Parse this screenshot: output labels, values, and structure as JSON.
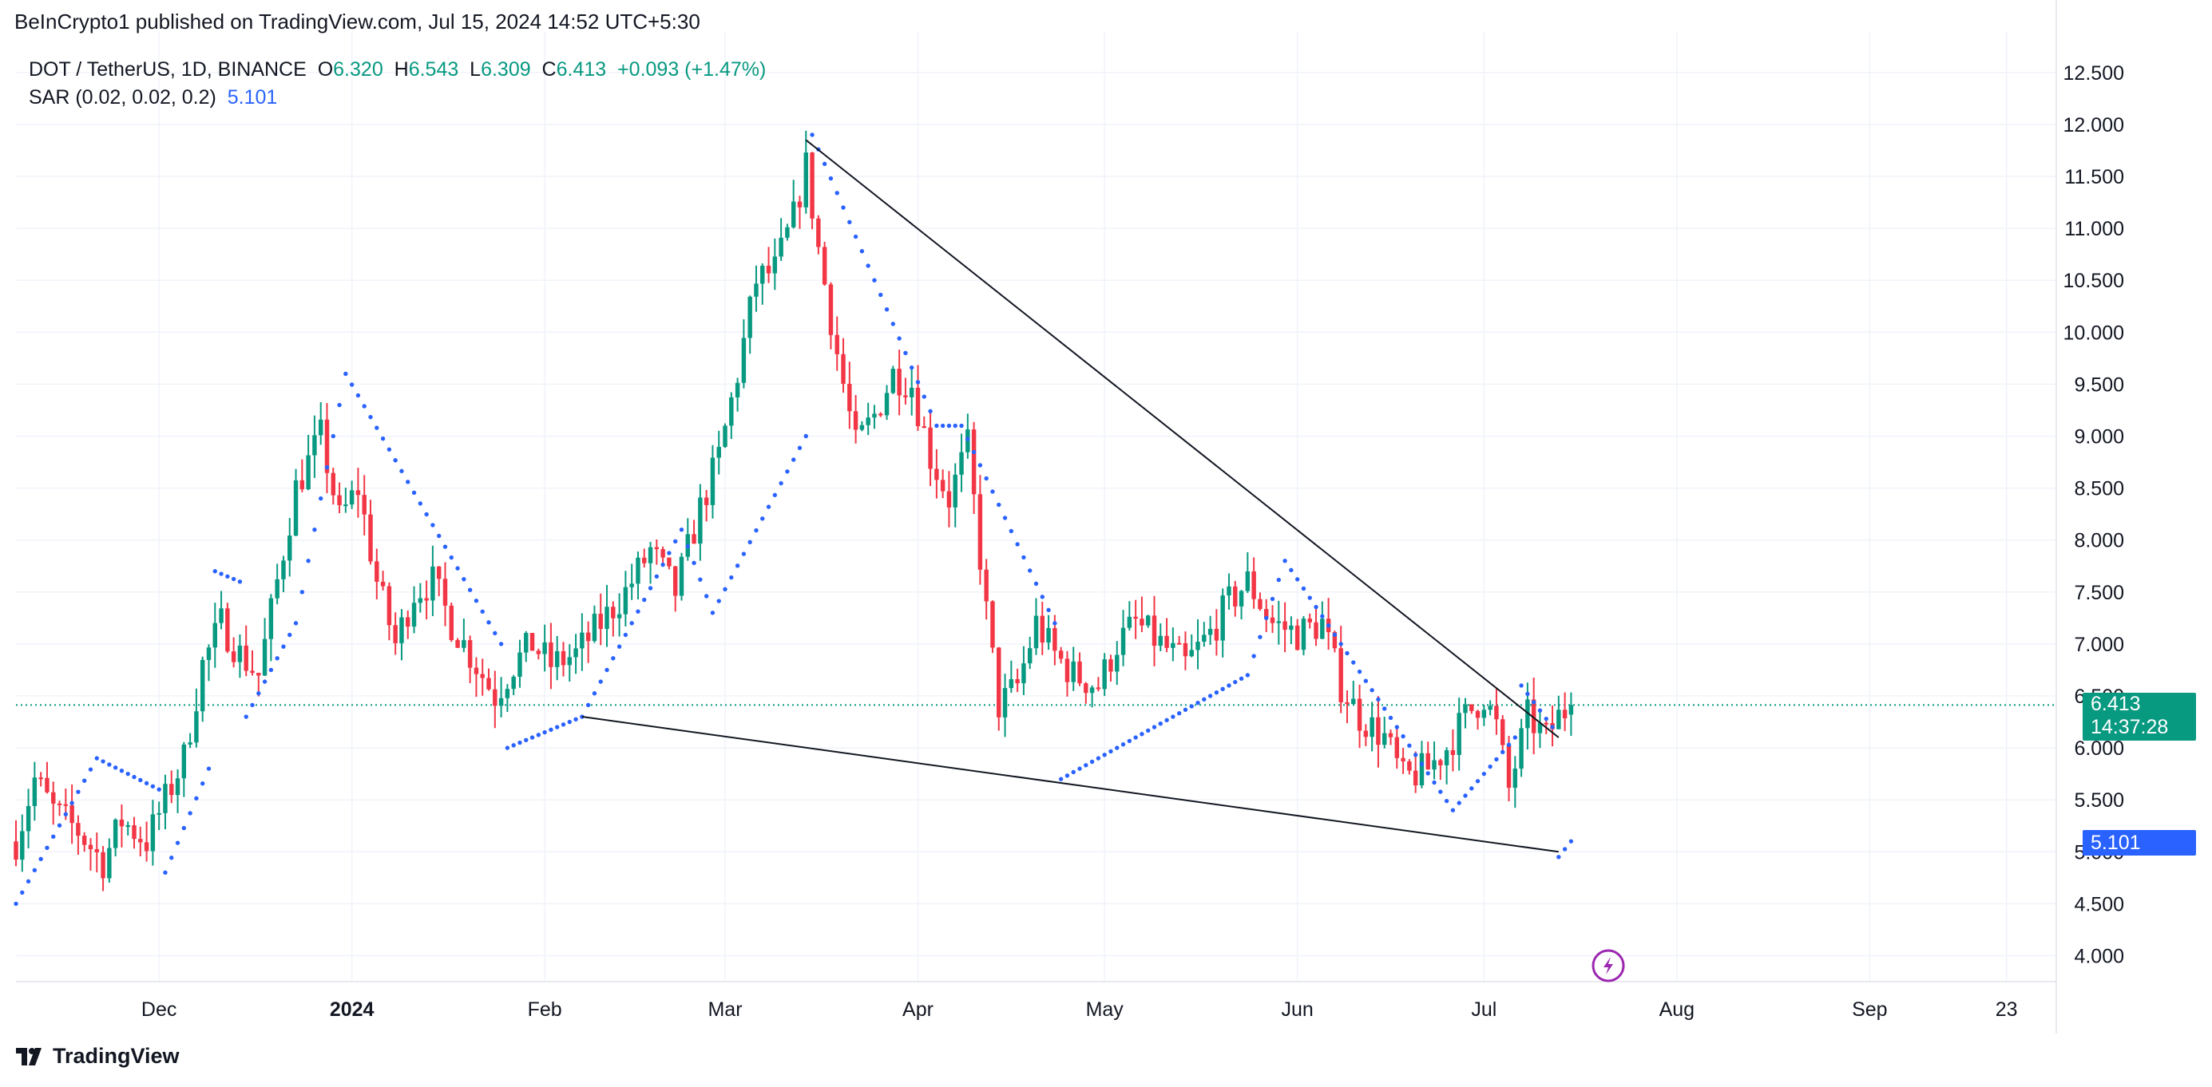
{
  "header": {
    "publisher": "BeInCrypto1 published on TradingView.com, Jul 15, 2024 14:52 UTC+5:30"
  },
  "legend": {
    "symbol": "DOT / TetherUS, 1D, BINANCE",
    "o_label": "O",
    "o": "6.320",
    "h_label": "H",
    "h": "6.543",
    "l_label": "L",
    "l": "6.309",
    "c_label": "C",
    "c": "6.413",
    "change": "+0.093 (+1.47%)",
    "sar_label": "SAR (0.02, 0.02, 0.2)",
    "sar_value": "5.101"
  },
  "price_tag": {
    "price": "6.413",
    "countdown": "14:37:28"
  },
  "sar_tag": {
    "value": "5.101"
  },
  "footer": {
    "brand": "TradingView"
  },
  "colors": {
    "up": "#089981",
    "down": "#f23645",
    "sar": "#2962ff",
    "grid": "#f0f3fa",
    "price_line": "#089981",
    "lightning": "#9c27b0"
  },
  "chart_data": {
    "type": "candlestick",
    "symbol": "DOT / TetherUS",
    "interval": "1D",
    "exchange": "BINANCE",
    "y_axis": {
      "min": 3.7,
      "max": 12.8,
      "ticks": [
        "4.000",
        "4.500",
        "5.000",
        "5.500",
        "6.000",
        "6.500",
        "7.000",
        "7.500",
        "8.000",
        "8.500",
        "9.000",
        "9.500",
        "10.000",
        "10.500",
        "11.000",
        "11.500",
        "12.000",
        "12.500"
      ]
    },
    "x_axis": {
      "start": "2023-11-08",
      "end": "2024-10-01",
      "labels": [
        {
          "text": "Dec",
          "date": "2023-12-01",
          "bold": false
        },
        {
          "text": "2024",
          "date": "2024-01-01",
          "bold": true
        },
        {
          "text": "Feb",
          "date": "2024-02-01",
          "bold": false
        },
        {
          "text": "Mar",
          "date": "2024-03-01",
          "bold": false
        },
        {
          "text": "Apr",
          "date": "2024-04-01",
          "bold": false
        },
        {
          "text": "May",
          "date": "2024-05-01",
          "bold": false
        },
        {
          "text": "Jun",
          "date": "2024-06-01",
          "bold": false
        },
        {
          "text": "Jul",
          "date": "2024-07-01",
          "bold": false
        },
        {
          "text": "Aug",
          "date": "2024-08-01",
          "bold": false
        },
        {
          "text": "Sep",
          "date": "2024-09-01",
          "bold": false
        },
        {
          "text": "23",
          "date": "2024-09-23",
          "bold": false
        }
      ]
    },
    "close_path": [
      [
        "2023-11-08",
        5.1
      ],
      [
        "2023-11-11",
        5.7
      ],
      [
        "2023-11-14",
        5.4
      ],
      [
        "2023-11-18",
        5.2
      ],
      [
        "2023-11-22",
        4.9
      ],
      [
        "2023-11-25",
        5.3
      ],
      [
        "2023-11-29",
        5.1
      ],
      [
        "2023-12-02",
        5.5
      ],
      [
        "2023-12-05",
        5.9
      ],
      [
        "2023-12-08",
        6.8
      ],
      [
        "2023-12-11",
        7.2
      ],
      [
        "2023-12-14",
        6.9
      ],
      [
        "2023-12-17",
        6.7
      ],
      [
        "2023-12-20",
        7.6
      ],
      [
        "2023-12-23",
        8.5
      ],
      [
        "2023-12-27",
        9.0
      ],
      [
        "2023-12-30",
        8.2
      ],
      [
        "2024-01-02",
        8.5
      ],
      [
        "2024-01-05",
        7.6
      ],
      [
        "2024-01-08",
        7.0
      ],
      [
        "2024-01-11",
        7.5
      ],
      [
        "2024-01-14",
        7.6
      ],
      [
        "2024-01-17",
        7.2
      ],
      [
        "2024-01-20",
        6.9
      ],
      [
        "2024-01-24",
        6.5
      ],
      [
        "2024-01-27",
        6.8
      ],
      [
        "2024-01-30",
        7.0
      ],
      [
        "2024-02-02",
        6.8
      ],
      [
        "2024-02-06",
        6.9
      ],
      [
        "2024-02-10",
        7.2
      ],
      [
        "2024-02-14",
        7.5
      ],
      [
        "2024-02-18",
        7.9
      ],
      [
        "2024-02-22",
        7.5
      ],
      [
        "2024-02-26",
        8.3
      ],
      [
        "2024-02-29",
        8.8
      ],
      [
        "2024-03-03",
        9.6
      ],
      [
        "2024-03-06",
        10.5
      ],
      [
        "2024-03-09",
        10.6
      ],
      [
        "2024-03-12",
        11.1
      ],
      [
        "2024-03-14",
        11.6
      ],
      [
        "2024-03-16",
        10.8
      ],
      [
        "2024-03-19",
        9.8
      ],
      [
        "2024-03-22",
        8.9
      ],
      [
        "2024-03-25",
        9.2
      ],
      [
        "2024-03-28",
        9.6
      ],
      [
        "2024-03-31",
        9.5
      ],
      [
        "2024-04-03",
        8.8
      ],
      [
        "2024-04-06",
        8.4
      ],
      [
        "2024-04-09",
        8.9
      ],
      [
        "2024-04-12",
        7.3
      ],
      [
        "2024-04-14",
        6.4
      ],
      [
        "2024-04-17",
        6.6
      ],
      [
        "2024-04-20",
        7.2
      ],
      [
        "2024-04-23",
        6.9
      ],
      [
        "2024-04-26",
        6.7
      ],
      [
        "2024-04-30",
        6.6
      ],
      [
        "2024-05-03",
        7.0
      ],
      [
        "2024-05-06",
        7.2
      ],
      [
        "2024-05-10",
        7.0
      ],
      [
        "2024-05-14",
        6.8
      ],
      [
        "2024-05-18",
        7.1
      ],
      [
        "2024-05-21",
        7.4
      ],
      [
        "2024-05-24",
        7.6
      ],
      [
        "2024-05-28",
        7.2
      ],
      [
        "2024-06-01",
        7.1
      ],
      [
        "2024-06-05",
        7.2
      ],
      [
        "2024-06-08",
        6.6
      ],
      [
        "2024-06-11",
        6.3
      ],
      [
        "2024-06-15",
        6.1
      ],
      [
        "2024-06-18",
        5.7
      ],
      [
        "2024-06-22",
        5.8
      ],
      [
        "2024-06-25",
        6.0
      ],
      [
        "2024-06-28",
        6.3
      ],
      [
        "2024-07-01",
        6.5
      ],
      [
        "2024-07-03",
        6.2
      ],
      [
        "2024-07-05",
        5.6
      ],
      [
        "2024-07-08",
        6.3
      ],
      [
        "2024-07-11",
        6.1
      ],
      [
        "2024-07-13",
        6.3
      ],
      [
        "2024-07-15",
        6.413
      ]
    ],
    "sar_path": [
      [
        "2023-11-08",
        4.5
      ],
      [
        "2023-11-21",
        5.9
      ],
      [
        "2023-12-01",
        5.6
      ],
      [
        "2023-12-02",
        4.8
      ],
      [
        "2023-12-09",
        5.8
      ],
      [
        "2023-12-10",
        7.7
      ],
      [
        "2023-12-14",
        7.6
      ],
      [
        "2023-12-15",
        6.3
      ],
      [
        "2023-12-23",
        7.2
      ],
      [
        "2023-12-31",
        9.6
      ],
      [
        "2024-01-25",
        7.0
      ],
      [
        "2024-01-26",
        6.0
      ],
      [
        "2024-02-07",
        6.3
      ],
      [
        "2024-02-23",
        8.1
      ],
      [
        "2024-02-28",
        7.3
      ],
      [
        "2024-03-14",
        9.0
      ],
      [
        "2024-03-15",
        11.9
      ],
      [
        "2024-04-04",
        9.1
      ],
      [
        "2024-04-08",
        9.1
      ],
      [
        "2024-04-23",
        7.2
      ],
      [
        "2024-04-24",
        5.7
      ],
      [
        "2024-05-24",
        6.7
      ],
      [
        "2024-05-30",
        7.8
      ],
      [
        "2024-06-26",
        5.4
      ],
      [
        "2024-07-06",
        6.1
      ],
      [
        "2024-07-07",
        6.6
      ],
      [
        "2024-07-12",
        6.2
      ],
      [
        "2024-07-13",
        4.95
      ],
      [
        "2024-07-15",
        5.101
      ]
    ],
    "trendlines": [
      {
        "from": [
          "2024-03-14",
          11.85
        ],
        "to": [
          "2024-07-13",
          6.1
        ]
      },
      {
        "from": [
          "2024-02-07",
          6.3
        ],
        "to": [
          "2024-07-13",
          5.0
        ]
      }
    ],
    "last_price": 6.413,
    "last_sar": 5.101
  }
}
